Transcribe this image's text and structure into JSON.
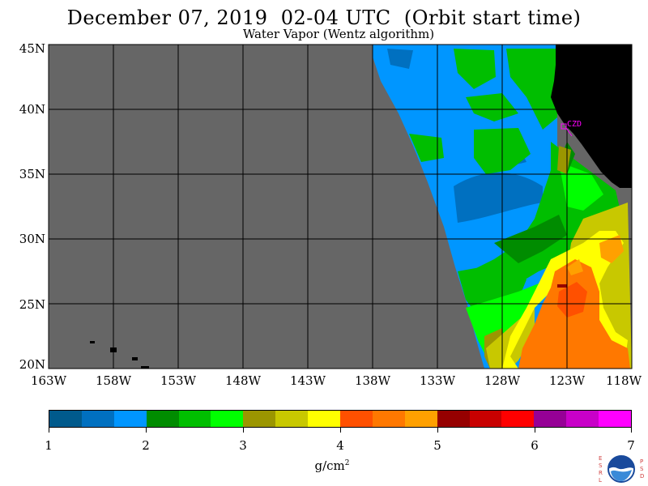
{
  "header": {
    "title": "December 07, 2019  02-04 UTC  (Orbit start time)",
    "subtitle": "Water Vapor (Wentz algorithm)"
  },
  "map": {
    "lat_labels": [
      "45N",
      "40N",
      "35N",
      "30N",
      "25N",
      "20N"
    ],
    "lon_labels": [
      "163W",
      "158W",
      "153W",
      "148W",
      "143W",
      "138W",
      "133W",
      "128W",
      "123W",
      "118W"
    ],
    "station_label": "CZD",
    "colors": {
      "no_data": "#666666",
      "land": "#000000",
      "gridline": "#000000",
      "station": "#ff00ff"
    }
  },
  "colorbar": {
    "tick_labels": [
      "1",
      "2",
      "3",
      "4",
      "5",
      "6",
      "7"
    ],
    "units": "g/cm",
    "units_superscript": "2",
    "colors": [
      "#005a8c",
      "#0070c0",
      "#0096ff",
      "#008c00",
      "#00be00",
      "#00ff00",
      "#9b9600",
      "#c8c800",
      "#ffff00",
      "#ff5000",
      "#ff7800",
      "#ffa000",
      "#960000",
      "#c80000",
      "#ff0000",
      "#960096",
      "#c800c8",
      "#ff00ff"
    ]
  },
  "logo": {
    "left_text": "ESRL",
    "right_text": "PSD",
    "icon": "noaa-logo-icon"
  }
}
